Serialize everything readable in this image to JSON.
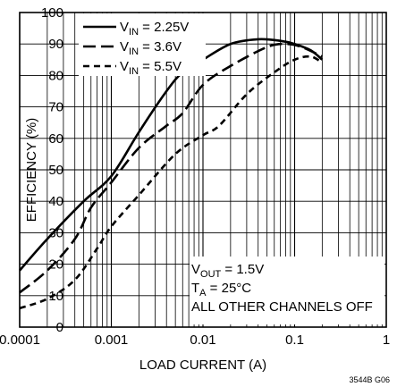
{
  "chart_data": {
    "type": "line",
    "xlabel": "LOAD CURRENT (A)",
    "ylabel": "EFFICIENCY (%)",
    "x_scale": "log",
    "xlim": [
      0.0001,
      1
    ],
    "ylim": [
      0,
      100
    ],
    "x_ticks": [
      "0.0001",
      "0.001",
      "0.01",
      "0.1",
      "1"
    ],
    "y_ticks": [
      "0",
      "10",
      "20",
      "30",
      "40",
      "50",
      "60",
      "70",
      "80",
      "90",
      "100"
    ],
    "grid": true,
    "legend_position": "top-left",
    "series": [
      {
        "name": "V_IN = 2.25V",
        "label_main": "V",
        "label_sub": "IN",
        "label_rest": " = 2.25V",
        "dash": "solid",
        "points": [
          [
            0.0001,
            18
          ],
          [
            0.0002,
            28
          ],
          [
            0.0005,
            40
          ],
          [
            0.001,
            48
          ],
          [
            0.002,
            62
          ],
          [
            0.004,
            75
          ],
          [
            0.006,
            81
          ],
          [
            0.01,
            85
          ],
          [
            0.02,
            90
          ],
          [
            0.04,
            91.5
          ],
          [
            0.07,
            91
          ],
          [
            0.1,
            90
          ],
          [
            0.15,
            88
          ],
          [
            0.2,
            85
          ]
        ]
      },
      {
        "name": "V_IN = 3.6V",
        "label_main": "V",
        "label_sub": "IN",
        "label_rest": " = 3.6V",
        "dash": "long-dash",
        "points": [
          [
            0.0001,
            11
          ],
          [
            0.0002,
            18
          ],
          [
            0.0004,
            28
          ],
          [
            0.0006,
            38
          ],
          [
            0.001,
            46
          ],
          [
            0.002,
            57
          ],
          [
            0.004,
            64
          ],
          [
            0.006,
            68
          ],
          [
            0.01,
            77
          ],
          [
            0.02,
            83
          ],
          [
            0.05,
            89
          ],
          [
            0.08,
            90
          ],
          [
            0.12,
            89
          ],
          [
            0.2,
            86
          ]
        ]
      },
      {
        "name": "V_IN = 5.5V",
        "label_main": "V",
        "label_sub": "IN",
        "label_rest": " = 5.5V",
        "dash": "short-dash",
        "points": [
          [
            0.0001,
            6
          ],
          [
            0.0002,
            9
          ],
          [
            0.0004,
            15
          ],
          [
            0.0007,
            25
          ],
          [
            0.001,
            32
          ],
          [
            0.002,
            42
          ],
          [
            0.005,
            55
          ],
          [
            0.01,
            61
          ],
          [
            0.015,
            64
          ],
          [
            0.03,
            74
          ],
          [
            0.06,
            81
          ],
          [
            0.1,
            85
          ],
          [
            0.15,
            86
          ],
          [
            0.2,
            84
          ]
        ]
      }
    ],
    "annotations": [
      {
        "main": "V",
        "sub": "OUT",
        "rest": " = 1.5V"
      },
      {
        "main": "T",
        "sub": "A",
        "rest": " = 25°C"
      },
      {
        "main": "ALL OTHER CHANNELS OFF",
        "sub": "",
        "rest": ""
      }
    ],
    "figure_id": "3544B G06"
  },
  "colors": {
    "line": "#000000",
    "grid": "#000000",
    "background": "#ffffff"
  }
}
